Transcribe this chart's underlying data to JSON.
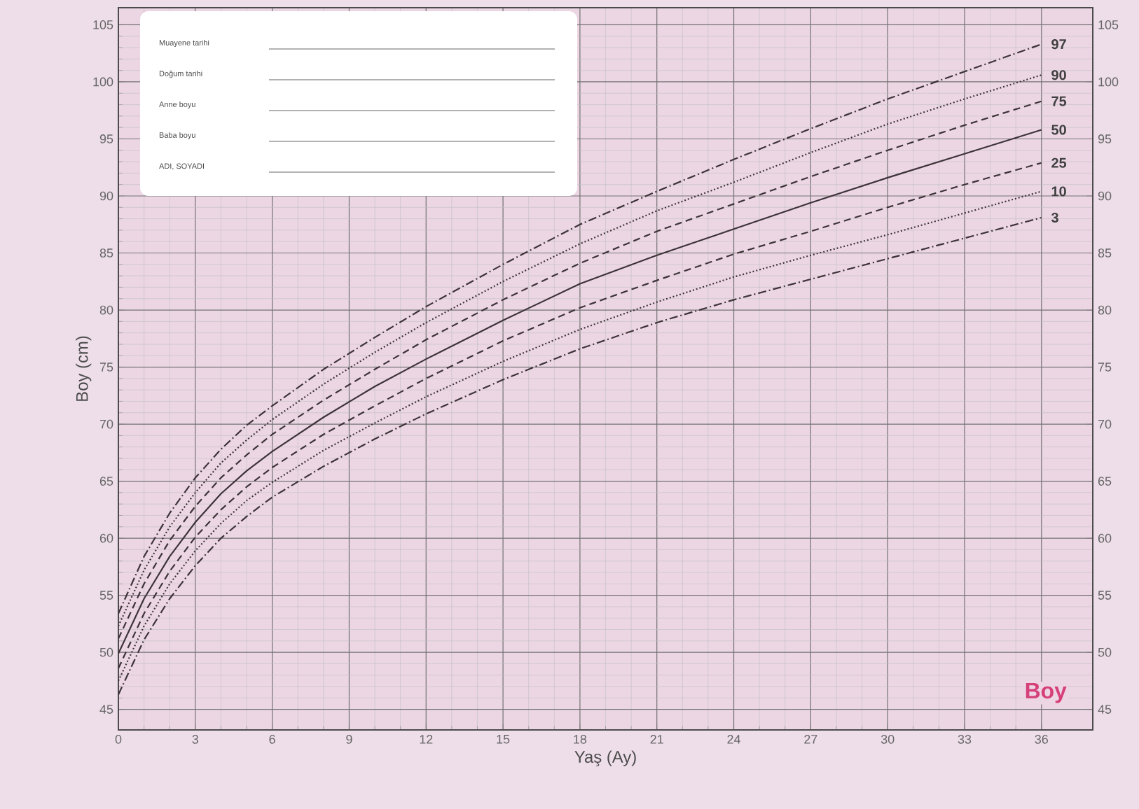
{
  "chart_data": {
    "type": "line",
    "xlabel": "Yaş (Ay)",
    "ylabel": "Boy (cm)",
    "x": [
      0,
      1,
      2,
      3,
      4,
      5,
      6,
      8,
      10,
      12,
      15,
      18,
      21,
      24,
      27,
      30,
      33,
      36
    ],
    "xlim": [
      0,
      38
    ],
    "ylim": [
      43.2,
      106.5
    ],
    "y2lim": [
      43.2,
      106.5
    ],
    "xticks": [
      0,
      3,
      6,
      9,
      12,
      15,
      18,
      21,
      24,
      27,
      30,
      33,
      36
    ],
    "yticks": [
      45,
      50,
      55,
      60,
      65,
      70,
      75,
      80,
      85,
      90,
      95,
      100,
      105
    ],
    "y2ticks": [
      45,
      50,
      55,
      60,
      65,
      70,
      75,
      80,
      85,
      90,
      95,
      100,
      105
    ],
    "grid": true,
    "marker": "none",
    "series": [
      {
        "name": "97",
        "color": "#3d3338",
        "line_style": "dashdot",
        "values": [
          53.4,
          58.4,
          62.2,
          65.3,
          67.8,
          69.9,
          71.6,
          74.8,
          77.6,
          80.3,
          84.0,
          87.5,
          90.4,
          93.2,
          95.9,
          98.5,
          100.9,
          103.3
        ]
      },
      {
        "name": "90",
        "color": "#3d3338",
        "line_style": "dotted",
        "values": [
          52.3,
          57.2,
          61.0,
          64.0,
          66.6,
          68.6,
          70.4,
          73.5,
          76.3,
          78.9,
          82.5,
          85.8,
          88.7,
          91.2,
          93.8,
          96.3,
          98.5,
          100.6
        ]
      },
      {
        "name": "75",
        "color": "#3d3338",
        "line_style": "dashed",
        "values": [
          51.2,
          56.0,
          59.8,
          62.8,
          65.3,
          67.3,
          69.1,
          72.1,
          74.8,
          77.4,
          80.9,
          84.1,
          86.9,
          89.3,
          91.7,
          94.0,
          96.2,
          98.3
        ]
      },
      {
        "name": "50",
        "color": "#3d3338",
        "line_style": "solid",
        "values": [
          49.9,
          54.7,
          58.4,
          61.4,
          63.9,
          65.9,
          67.6,
          70.6,
          73.3,
          75.7,
          79.1,
          82.3,
          84.8,
          87.1,
          89.4,
          91.6,
          93.7,
          95.8
        ]
      },
      {
        "name": "25",
        "color": "#3d3338",
        "line_style": "dashed",
        "values": [
          48.6,
          53.4,
          57.1,
          60.1,
          62.5,
          64.5,
          66.2,
          69.1,
          71.6,
          74.0,
          77.3,
          80.2,
          82.6,
          84.9,
          86.9,
          89.0,
          91.0,
          92.9
        ]
      },
      {
        "name": "10",
        "color": "#3d3338",
        "line_style": "dotted",
        "values": [
          47.5,
          52.3,
          56.0,
          58.9,
          61.3,
          63.3,
          64.9,
          67.7,
          70.1,
          72.4,
          75.5,
          78.3,
          80.7,
          82.9,
          84.8,
          86.6,
          88.5,
          90.4
        ]
      },
      {
        "name": "3",
        "color": "#3d3338",
        "line_style": "dashdot",
        "values": [
          46.3,
          51.1,
          54.7,
          57.6,
          60.0,
          61.9,
          63.6,
          66.3,
          68.7,
          70.9,
          73.9,
          76.6,
          78.9,
          80.9,
          82.7,
          84.5,
          86.3,
          88.1
        ]
      }
    ],
    "annotations": [
      "Boy",
      "Muayene tarihi",
      "Doğum tarihi",
      "Anne boyu",
      "Baba boyu",
      "ADI, SOYADI"
    ]
  }
}
